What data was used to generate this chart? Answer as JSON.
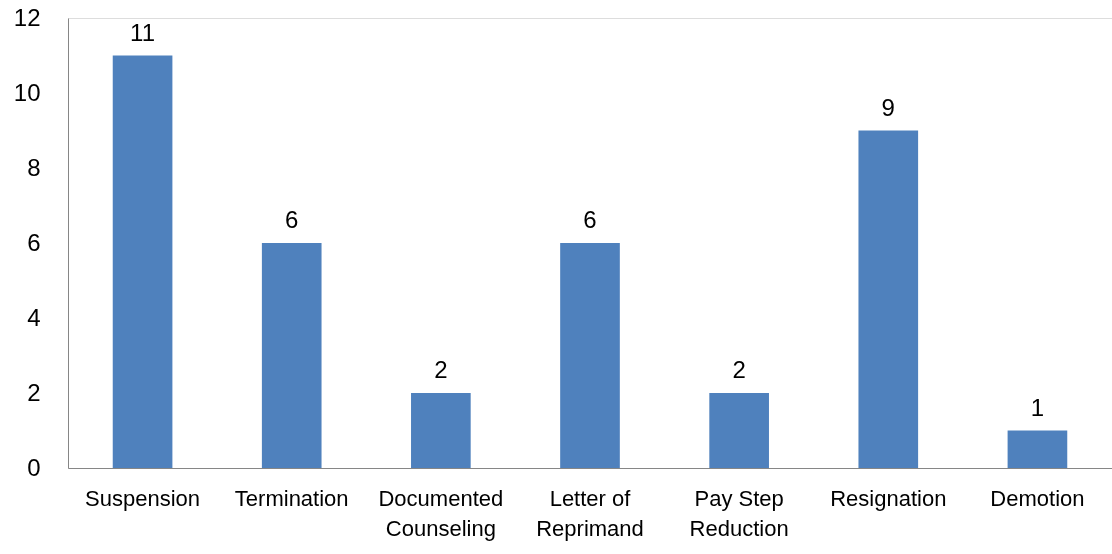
{
  "chart_data": {
    "type": "bar",
    "categories": [
      "Suspension",
      "Termination",
      "Documented Counseling",
      "Letter of Reprimand",
      "Pay Step Reduction",
      "Resignation",
      "Demotion"
    ],
    "values": [
      11,
      6,
      2,
      6,
      2,
      9,
      1
    ],
    "color": "#4f81bd",
    "ylim": [
      0,
      12
    ],
    "yticks": [
      0,
      2,
      4,
      6,
      8,
      10,
      12
    ],
    "data_labels": true
  }
}
